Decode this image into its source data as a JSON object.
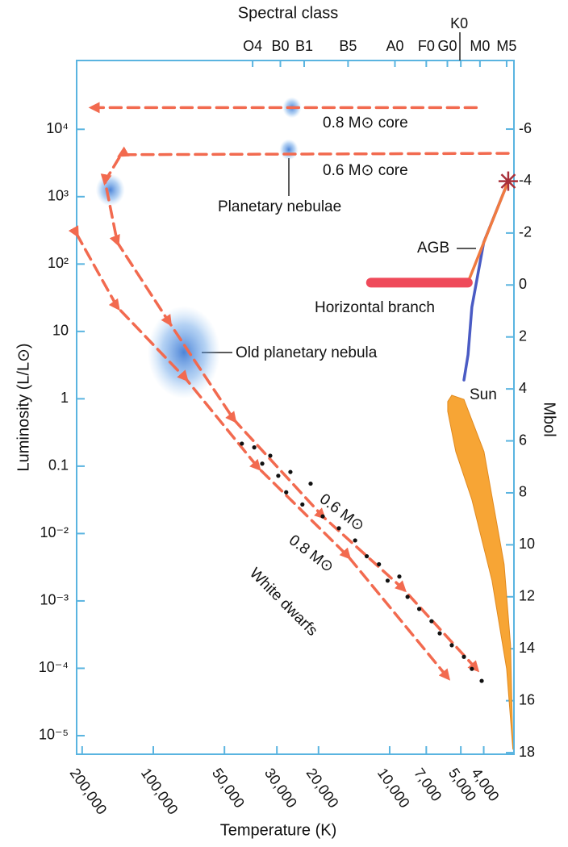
{
  "chart_data": {
    "type": "line",
    "title_top": "Spectral class",
    "xlabel": "Temperature (K)",
    "ylabel": "Luminosity (L/L⊙)",
    "y2label": "Mbol",
    "xscale": "log",
    "yscale": "log",
    "xlim": [
      211000,
      2980
    ],
    "ylim": [
      5.3e-06,
      105000
    ],
    "y2lim": [
      18.06,
      -8.64
    ],
    "axis_color": "#5ab4e0",
    "xticks": [
      {
        "value": 200000,
        "label": "200,000"
      },
      {
        "value": 100000,
        "label": "100,000"
      },
      {
        "value": 50000,
        "label": "50,000"
      },
      {
        "value": 30000,
        "label": "30,000"
      },
      {
        "value": 20000,
        "label": "20,000"
      },
      {
        "value": 10000,
        "label": "10,000"
      },
      {
        "value": 7000,
        "label": "7,000"
      },
      {
        "value": 5000,
        "label": "5,000"
      },
      {
        "value": 4000,
        "label": "4,000"
      }
    ],
    "x2ticks": [
      {
        "value": 38000,
        "label": "O4"
      },
      {
        "value": 29000,
        "label": "B0"
      },
      {
        "value": 23000,
        "label": "B1"
      },
      {
        "value": 15000,
        "label": "B5"
      },
      {
        "value": 9500,
        "label": "A0"
      },
      {
        "value": 7000,
        "label": "F0"
      },
      {
        "value": 5700,
        "label": "G0"
      },
      {
        "value": 5000,
        "label": "K0"
      },
      {
        "value": 4150,
        "label": "M0"
      },
      {
        "value": 3200,
        "label": "M5"
      }
    ],
    "yticks": [
      {
        "value": 1e-05,
        "label": "10⁻⁵"
      },
      {
        "value": 0.0001,
        "label": "10⁻⁴"
      },
      {
        "value": 0.001,
        "label": "10⁻³"
      },
      {
        "value": 0.01,
        "label": "10⁻²"
      },
      0.1,
      1,
      10,
      {
        "value": 100,
        "label": "10²"
      },
      {
        "value": 1000,
        "label": "10³"
      },
      {
        "value": 10000,
        "label": "10⁴"
      }
    ],
    "y2ticks": [
      -6,
      -4,
      -2,
      0,
      2,
      4,
      6,
      8,
      10,
      12,
      14,
      16,
      18
    ],
    "series": [
      {
        "kind": "line",
        "dash": true,
        "color": "#f26a4f",
        "x": [
          4300,
          180000,
          null,
          211000,
          142000,
          73000,
          36000,
          15000,
          5700
        ],
        "values": [
          21000,
          21000,
          null,
          280,
          23,
          2.0,
          0.095,
          0.0046,
          7.4e-05
        ]
      },
      {
        "kind": "line",
        "dash": true,
        "color": "#f26a4f",
        "x": [
          3150,
          137000,
          160000,
          142000,
          85500,
          45600,
          19200,
          8750,
          4300
        ],
        "values": [
          4400,
          4200,
          1700,
          210,
          13.5,
          0.49,
          0.018,
          0.0015,
          9.8e-05
        ]
      },
      {
        "kind": "area",
        "color": "#f7a535",
        "x": [
          5680,
          5460,
          4850,
          3990,
          3280,
          3080,
          3010,
          3200,
          3690,
          4490,
          5250,
          5680
        ],
        "values": [
          0.91,
          1.13,
          0.98,
          0.164,
          0.0035,
          0.00022,
          6.2e-06,
          9.8e-05,
          0.002,
          0.032,
          0.164,
          0.65
        ]
      },
      {
        "kind": "line",
        "color": "#4a5bc4",
        "x": [
          4850,
          4660,
          4490,
          4000,
          3150
        ],
        "values": [
          1.9,
          4.5,
          23,
          210,
          1700
        ]
      },
      {
        "kind": "line",
        "color": "#f07a40",
        "x": [
          4670,
          3150
        ],
        "values": [
          53,
          1700
        ]
      },
      {
        "kind": "line",
        "color": "#ef4a5a",
        "width": 12,
        "x": [
          12000,
          4670
        ],
        "values": [
          53,
          53
        ]
      },
      {
        "kind": "scatter",
        "color": "#111111",
        "x": [
          42200,
          37400,
          34600,
          32000,
          29600,
          27400,
          26300,
          23400,
          21600,
          19200,
          16400,
          14000,
          12500,
          11100,
          10200,
          9100,
          8400,
          7500,
          6650,
          6140,
          5460,
          4850,
          4490,
          4080
        ],
        "values": [
          0.216,
          0.19,
          0.109,
          0.143,
          0.072,
          0.041,
          0.082,
          0.027,
          0.055,
          0.018,
          0.012,
          0.0079,
          0.0046,
          0.0035,
          0.002,
          0.0023,
          0.00115,
          0.00076,
          0.0005,
          0.00033,
          0.00022,
          0.000148,
          9.8e-05,
          6.5e-05
        ]
      }
    ],
    "nebulae": {
      "color": "#3a7fd8",
      "x": [
        25900,
        26700,
        152000,
        74200
      ],
      "values": [
        21000,
        5000,
        1260,
        4.9
      ]
    },
    "annotations": [
      "0.8 M⊙ core",
      "0.6 M⊙ core",
      "Planetary nebulae",
      "AGB",
      "Horizontal branch",
      "Old planetary nebula",
      "Sun",
      "0.6 M⊙",
      "0.8 M⊙",
      "White dwarfs"
    ]
  }
}
